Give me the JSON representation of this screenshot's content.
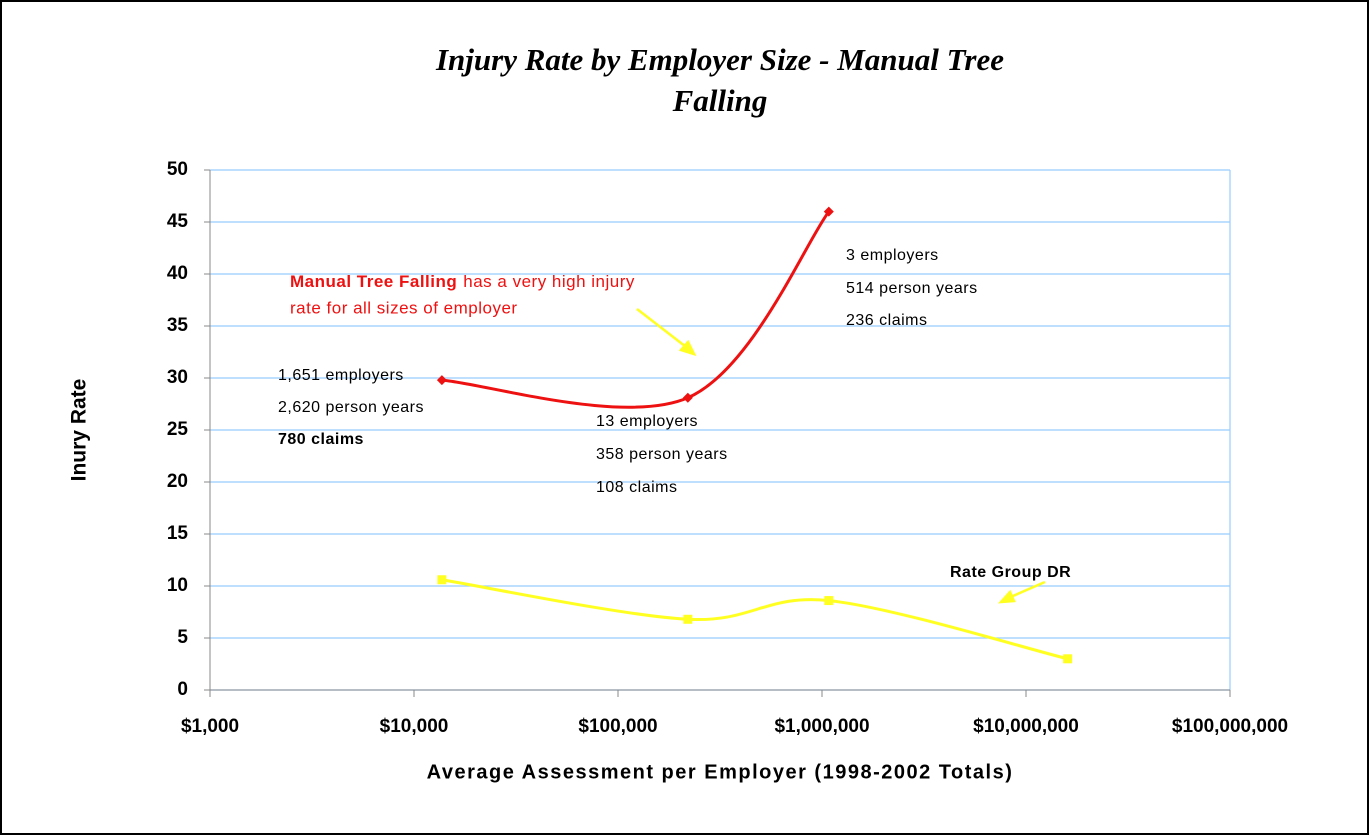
{
  "chart_data": {
    "type": "line",
    "title": [
      "Injury Rate by Employer Size - Manual Tree",
      "Falling"
    ],
    "x_label": "Average Assessment per Employer (1998-2002 Totals)",
    "y_label": "Inury Rate",
    "xscale": "log",
    "xlim": [
      1000,
      100000000
    ],
    "xticks": [
      {
        "value": 1000,
        "label": "$1,000"
      },
      {
        "value": 10000,
        "label": "$10,000"
      },
      {
        "value": 100000,
        "label": "$100,000"
      },
      {
        "value": 1000000,
        "label": "$1,000,000"
      },
      {
        "value": 10000000,
        "label": "$10,000,000"
      },
      {
        "value": 100000000,
        "label": "$100,000,000"
      }
    ],
    "ylim": [
      0,
      50
    ],
    "yticks": [
      0,
      5,
      10,
      15,
      20,
      25,
      30,
      35,
      40,
      45,
      50
    ],
    "grid": true,
    "series": [
      {
        "name": "Manual Tree Falling",
        "color": "#ee1111",
        "marker": "diamond",
        "x": [
          13700,
          220000,
          1080000
        ],
        "values": [
          29.8,
          28.1,
          46.0
        ]
      },
      {
        "name": "Rate Group DR",
        "color": "#ffff22",
        "marker": "square",
        "x": [
          13700,
          220000,
          1080000,
          16000000
        ],
        "values": [
          10.6,
          6.8,
          8.6,
          3.0
        ]
      }
    ],
    "note": [
      "has a very high injury",
      "rate for all sizes of employer"
    ],
    "annotations": [
      "1,651 employers",
      "2,620 person years",
      "780 claims",
      "13 employers",
      "358 person years",
      "108 claims",
      "3 employers",
      "514 person years",
      "236 claims"
    ]
  }
}
